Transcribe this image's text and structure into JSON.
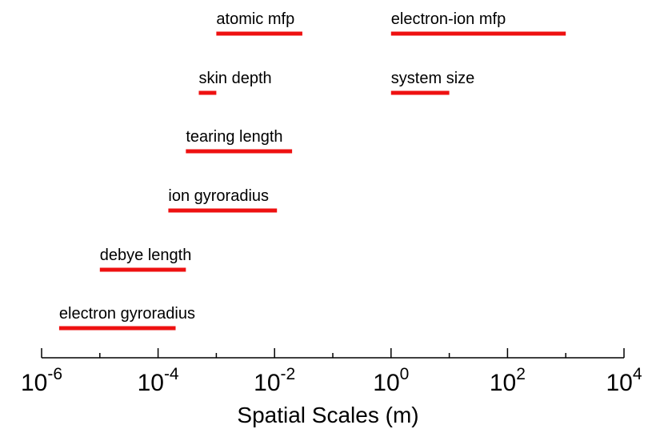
{
  "chart_data": {
    "type": "bar",
    "orientation": "horizontal-ranges",
    "x_scale": "log",
    "xlim": [
      1e-06,
      10000.0
    ],
    "xlabel": "Spatial Scales (m)",
    "x_ticks": [
      {
        "base": "10",
        "exp": "-6"
      },
      {
        "base": "10",
        "exp": "-4"
      },
      {
        "base": "10",
        "exp": "-2"
      },
      {
        "base": "10",
        "exp": "0"
      },
      {
        "base": "10",
        "exp": "2"
      },
      {
        "base": "10",
        "exp": "4"
      }
    ],
    "bar_color": "#ee1111",
    "grid": false,
    "ranges": [
      {
        "label": "atomic mfp",
        "from": 0.001,
        "to": 0.03
      },
      {
        "label": "electron-ion mfp",
        "from": 1,
        "to": 1000
      },
      {
        "label": "skin depth",
        "from": 0.0005,
        "to": 0.001
      },
      {
        "label": "system size",
        "from": 1,
        "to": 10
      },
      {
        "label": "tearing length",
        "from": 0.0003,
        "to": 0.02
      },
      {
        "label": "ion gyroradius",
        "from": 0.00015,
        "to": 0.011
      },
      {
        "label": "debye length",
        "from": 1e-05,
        "to": 0.0003
      },
      {
        "label": "electron gyroradius",
        "from": 2e-06,
        "to": 0.0002
      }
    ]
  }
}
